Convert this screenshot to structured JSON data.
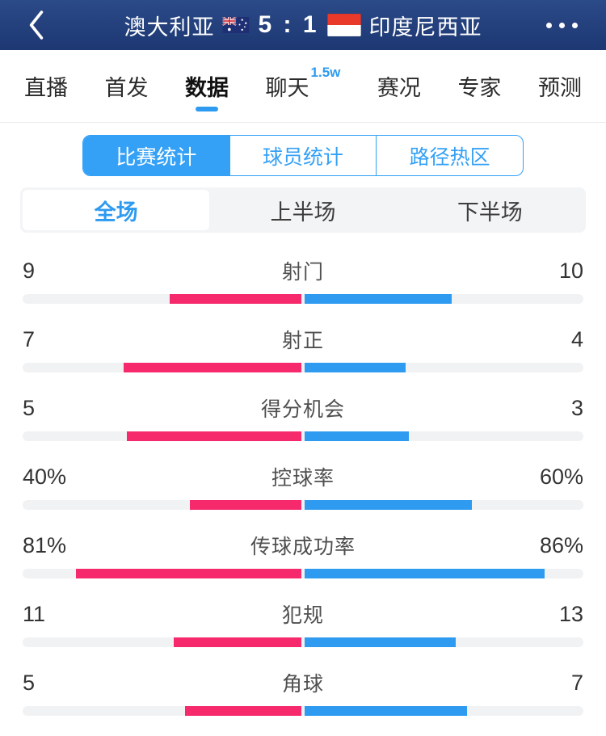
{
  "theme": {
    "header_top": "#2b4a88",
    "header_bottom": "#1d3873",
    "brand_blue": "#34a1f6",
    "accent_blue": "#2e9bf0",
    "bar_pink": "#f5296b",
    "bar_blue": "#2e9af0",
    "track_gray": "#f1f2f4",
    "period_bg": "#f3f4f6"
  },
  "header": {
    "back_icon": "chevron-left",
    "home_team": "澳大利亚",
    "home_flag": "australia",
    "score": "5 : 1",
    "away_flag": "indonesia",
    "away_team": "印度尼西亚",
    "more_icon": "ellipsis"
  },
  "nav_tabs": {
    "items": [
      {
        "name": "live",
        "label": "直播",
        "active": false,
        "badge": ""
      },
      {
        "name": "lineup",
        "label": "首发",
        "active": false,
        "badge": ""
      },
      {
        "name": "data",
        "label": "数据",
        "active": true,
        "badge": ""
      },
      {
        "name": "chat",
        "label": "聊天",
        "active": false,
        "badge": "1.5w"
      },
      {
        "name": "situation",
        "label": "赛况",
        "active": false,
        "badge": ""
      },
      {
        "name": "expert",
        "label": "专家",
        "active": false,
        "badge": ""
      },
      {
        "name": "prediction",
        "label": "预测",
        "active": false,
        "badge": ""
      }
    ]
  },
  "stat_tabs": {
    "items": [
      {
        "name": "match-stats",
        "label": "比赛统计",
        "active": true
      },
      {
        "name": "player-stats",
        "label": "球员统计",
        "active": false
      },
      {
        "name": "heatmap",
        "label": "路径热区",
        "active": false
      }
    ]
  },
  "period_tabs": {
    "items": [
      {
        "name": "full-match",
        "label": "全场",
        "active": true
      },
      {
        "name": "first-half",
        "label": "上半场",
        "active": false
      },
      {
        "name": "second-half",
        "label": "下半场",
        "active": false
      }
    ]
  },
  "chart_data": {
    "type": "bar",
    "title": "比赛统计 全场",
    "legend": [
      "澳大利亚",
      "印度尼西亚"
    ],
    "rows": [
      {
        "name": "shots",
        "label": "射门",
        "left_display": "9",
        "right_display": "10",
        "left_value": 9,
        "right_value": 10,
        "percent": false
      },
      {
        "name": "shots-on-target",
        "label": "射正",
        "left_display": "7",
        "right_display": "4",
        "left_value": 7,
        "right_value": 4,
        "percent": false
      },
      {
        "name": "scoring-chances",
        "label": "得分机会",
        "left_display": "5",
        "right_display": "3",
        "left_value": 5,
        "right_value": 3,
        "percent": false
      },
      {
        "name": "possession",
        "label": "控球率",
        "left_display": "40%",
        "right_display": "60%",
        "left_value": 40,
        "right_value": 60,
        "percent": true
      },
      {
        "name": "pass-success-rate",
        "label": "传球成功率",
        "left_display": "81%",
        "right_display": "86%",
        "left_value": 81,
        "right_value": 86,
        "percent": true
      },
      {
        "name": "fouls",
        "label": "犯规",
        "left_display": "11",
        "right_display": "13",
        "left_value": 11,
        "right_value": 13,
        "percent": false
      },
      {
        "name": "corners",
        "label": "角球",
        "left_display": "5",
        "right_display": "7",
        "left_value": 5,
        "right_value": 7,
        "percent": false
      }
    ]
  }
}
